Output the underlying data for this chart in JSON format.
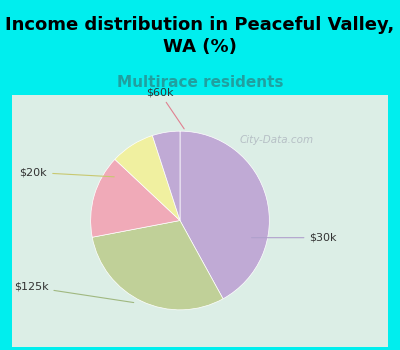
{
  "title": "Income distribution in Peaceful Valley,\nWA (%)",
  "subtitle": "Multirace residents",
  "title_fontsize": 13,
  "subtitle_fontsize": 11,
  "title_color": "#000000",
  "subtitle_color": "#20a0a0",
  "background_color": "#00EEEE",
  "chart_bg_left": "#d0ede0",
  "chart_bg_right": "#e8f0f8",
  "slices": [
    {
      "label": "$30k",
      "value": 42,
      "color": "#c0aad5"
    },
    {
      "label": "$125k",
      "value": 30,
      "color": "#c0d098"
    },
    {
      "label": "$60k",
      "value": 15,
      "color": "#f0aab8"
    },
    {
      "label": "$20k",
      "value": 8,
      "color": "#f0f0a0"
    },
    {
      "label": "",
      "value": 5,
      "color": "#c0aad5"
    }
  ],
  "startangle": 90,
  "watermark": "City-Data.com"
}
